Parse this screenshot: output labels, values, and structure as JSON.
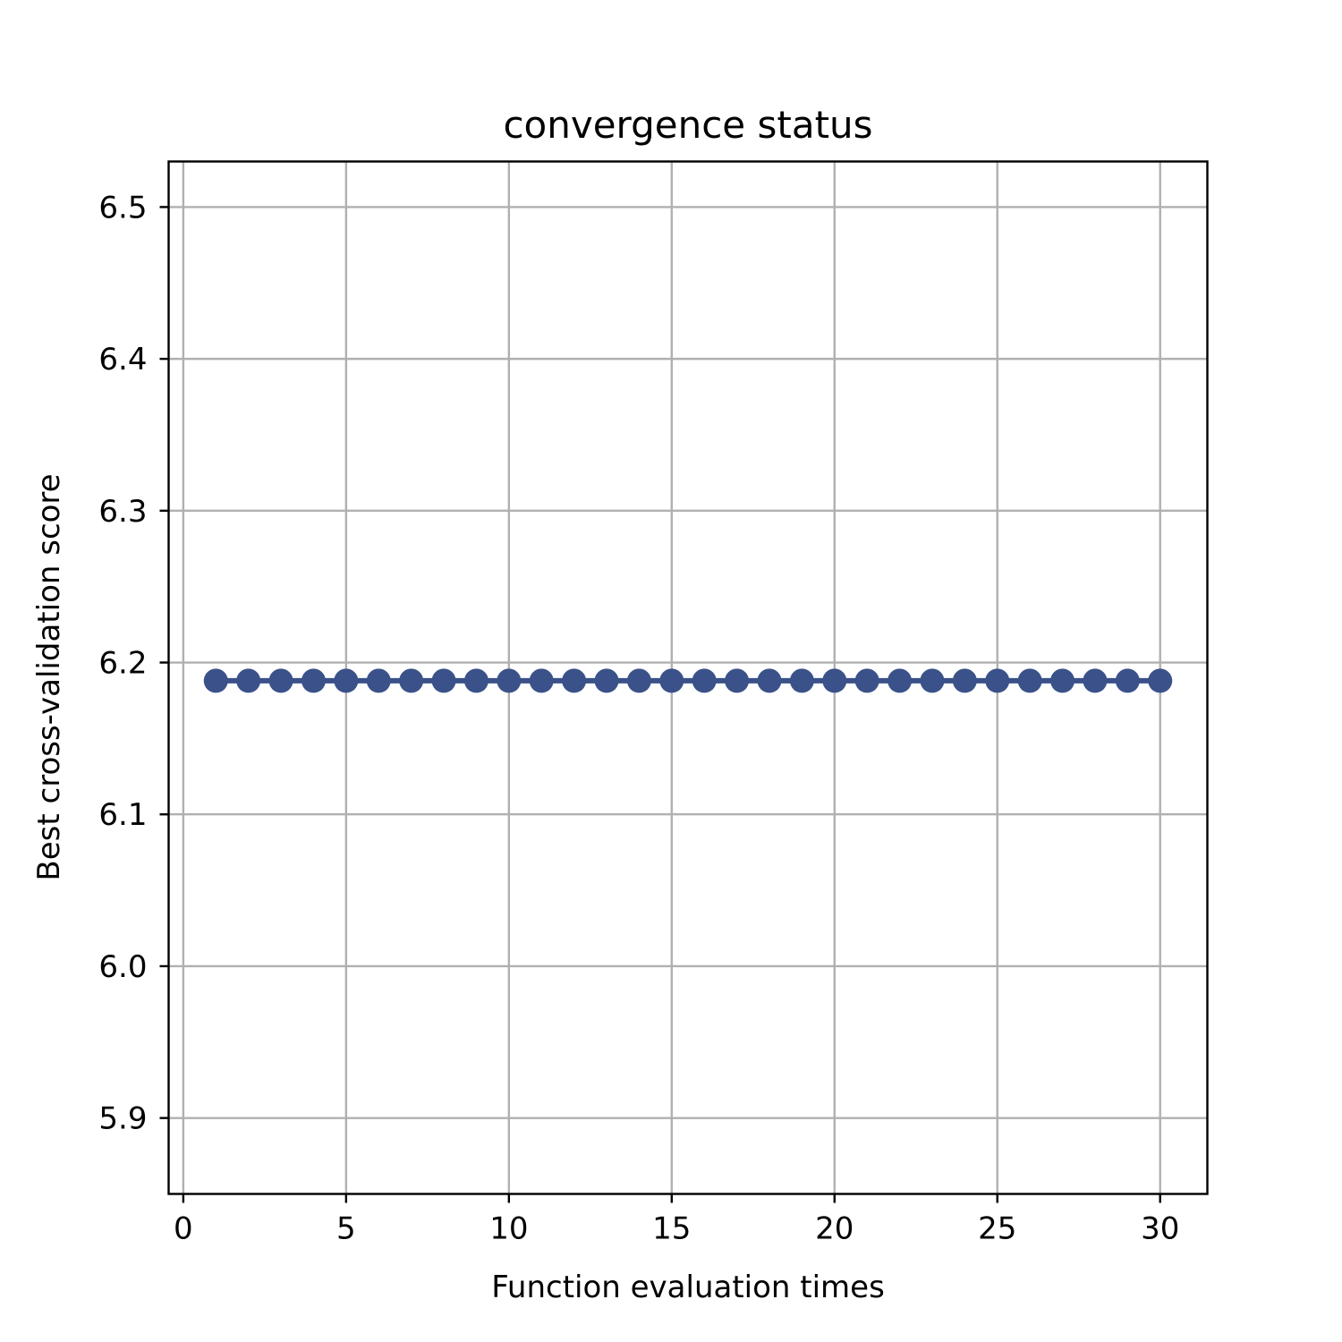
{
  "chart_data": {
    "type": "line",
    "title": "convergence status",
    "xlabel": "Function evaluation times",
    "ylabel": "Best cross-validation score",
    "xlim": [
      -0.45,
      31.45
    ],
    "ylim": [
      5.85,
      6.53
    ],
    "x_ticks": [
      0,
      5,
      10,
      15,
      20,
      25,
      30
    ],
    "x_tick_labels": [
      "0",
      "5",
      "10",
      "15",
      "20",
      "25",
      "30"
    ],
    "y_ticks": [
      5.9,
      6.0,
      6.1,
      6.2,
      6.3,
      6.4,
      6.5
    ],
    "y_tick_labels": [
      "5.9",
      "6.0",
      "6.1",
      "6.2",
      "6.3",
      "6.4",
      "6.5"
    ],
    "grid": true,
    "series": [
      {
        "color": "#3a5189",
        "marker": "circle",
        "x": [
          1,
          2,
          3,
          4,
          5,
          6,
          7,
          8,
          9,
          10,
          11,
          12,
          13,
          14,
          15,
          16,
          17,
          18,
          19,
          20,
          21,
          22,
          23,
          24,
          25,
          26,
          27,
          28,
          29,
          30
        ],
        "values": [
          6.188,
          6.188,
          6.188,
          6.188,
          6.188,
          6.188,
          6.188,
          6.188,
          6.188,
          6.188,
          6.188,
          6.188,
          6.188,
          6.188,
          6.188,
          6.188,
          6.188,
          6.188,
          6.188,
          6.188,
          6.188,
          6.188,
          6.188,
          6.188,
          6.188,
          6.188,
          6.188,
          6.188,
          6.188,
          6.188
        ]
      }
    ],
    "colors": {
      "grid": "#b0b0b0",
      "axes": "#000000"
    }
  }
}
